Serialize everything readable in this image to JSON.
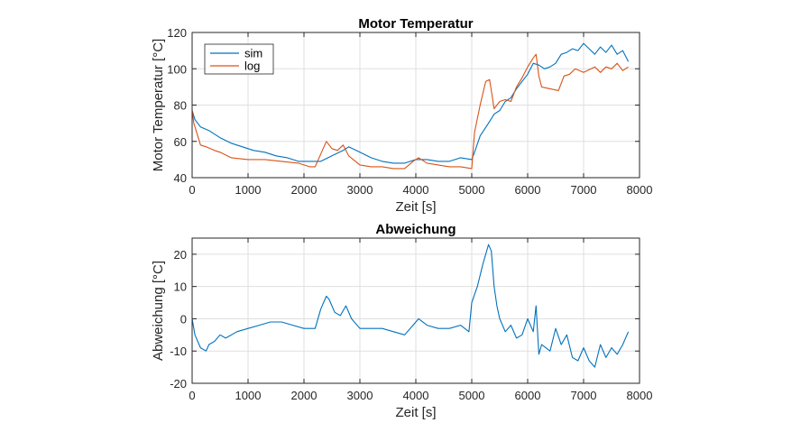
{
  "colors": {
    "sim": "#0072BD",
    "log": "#D95319",
    "grid": "#DFDFDF",
    "axis": "#262626"
  },
  "chart_data": [
    {
      "type": "line",
      "title": "Motor Temperatur",
      "xlabel": "Zeit [s]",
      "ylabel": "Motor Temperatur [°C]",
      "xlim": [
        0,
        8000
      ],
      "ylim": [
        40,
        120
      ],
      "xticks": [
        0,
        1000,
        2000,
        3000,
        4000,
        5000,
        6000,
        7000,
        8000
      ],
      "yticks": [
        40,
        60,
        80,
        100,
        120
      ],
      "xtick_labels": [
        "0",
        "1000",
        "2000",
        "3000",
        "4000",
        "5000",
        "6000",
        "7000",
        "8000"
      ],
      "ytick_labels": [
        "40",
        "60",
        "80",
        "100",
        "120"
      ],
      "grid": true,
      "legend": "top-left",
      "series": [
        {
          "name": "sim",
          "x": [
            0,
            50,
            150,
            300,
            500,
            700,
            900,
            1100,
            1300,
            1500,
            1700,
            1900,
            2100,
            2300,
            2500,
            2700,
            2800,
            3000,
            3200,
            3400,
            3600,
            3800,
            4000,
            4200,
            4400,
            4600,
            4800,
            5000,
            5050,
            5150,
            5300,
            5400,
            5500,
            5600,
            5700,
            5800,
            5900,
            6000,
            6100,
            6200,
            6300,
            6400,
            6500,
            6600,
            6700,
            6800,
            6900,
            7000,
            7100,
            7200,
            7300,
            7400,
            7500,
            7600,
            7700,
            7800
          ],
          "values": [
            77,
            72,
            68,
            66,
            62,
            59,
            57,
            55,
            54,
            52,
            51,
            49,
            49,
            49,
            52,
            55,
            57,
            54,
            51,
            49,
            48,
            48,
            50,
            50,
            49,
            49,
            51,
            50,
            54,
            63,
            70,
            75,
            77,
            82,
            84,
            89,
            93,
            97,
            103,
            102,
            100,
            101,
            103,
            108,
            109,
            111,
            110,
            114,
            111,
            108,
            112,
            109,
            113,
            108,
            110,
            104
          ]
        },
        {
          "name": "log",
          "x": [
            0,
            30,
            100,
            150,
            250,
            400,
            500,
            700,
            1000,
            1300,
            1600,
            1900,
            2100,
            2200,
            2300,
            2400,
            2500,
            2600,
            2700,
            2800,
            3000,
            3200,
            3400,
            3600,
            3800,
            3950,
            4050,
            4200,
            4400,
            4600,
            4800,
            5000,
            5050,
            5150,
            5250,
            5320,
            5400,
            5500,
            5600,
            5700,
            5800,
            5900,
            6000,
            6100,
            6150,
            6200,
            6250,
            6400,
            6550,
            6650,
            6750,
            6850,
            7000,
            7200,
            7300,
            7400,
            7500,
            7600,
            7700,
            7800
          ],
          "values": [
            77,
            70,
            63,
            58,
            57,
            55,
            54,
            51,
            50,
            50,
            49,
            48,
            46,
            46,
            53,
            60,
            56,
            55,
            58,
            52,
            47,
            46,
            46,
            45,
            45,
            49,
            51,
            48,
            47,
            46,
            46,
            45,
            65,
            80,
            93,
            94,
            78,
            82,
            83,
            82,
            90,
            95,
            101,
            106,
            108,
            96,
            90,
            89,
            88,
            96,
            97,
            100,
            98,
            101,
            98,
            101,
            100,
            103,
            99,
            101
          ]
        }
      ]
    },
    {
      "type": "line",
      "title": "Abweichung",
      "xlabel": "Zeit [s]",
      "ylabel": "Abweichung [°C]",
      "xlim": [
        0,
        8000
      ],
      "ylim": [
        -20,
        25
      ],
      "xticks": [
        0,
        1000,
        2000,
        3000,
        4000,
        5000,
        6000,
        7000,
        8000
      ],
      "yticks": [
        -20,
        -10,
        0,
        10,
        20
      ],
      "xtick_labels": [
        "0",
        "1000",
        "2000",
        "3000",
        "4000",
        "5000",
        "6000",
        "7000",
        "8000"
      ],
      "ytick_labels": [
        "-20",
        "-10",
        "0",
        "10",
        "20"
      ],
      "grid": true,
      "series": [
        {
          "name": "Abweichung",
          "x": [
            0,
            50,
            150,
            250,
            300,
            400,
            500,
            600,
            800,
            1000,
            1200,
            1400,
            1600,
            1800,
            2000,
            2200,
            2300,
            2400,
            2450,
            2550,
            2650,
            2750,
            2850,
            3000,
            3200,
            3400,
            3600,
            3800,
            3950,
            4050,
            4200,
            4400,
            4600,
            4800,
            4950,
            5000,
            5100,
            5200,
            5300,
            5350,
            5400,
            5450,
            5500,
            5600,
            5700,
            5800,
            5900,
            6000,
            6050,
            6100,
            6150,
            6200,
            6250,
            6400,
            6500,
            6600,
            6700,
            6800,
            6900,
            7000,
            7100,
            7200,
            7300,
            7400,
            7500,
            7600,
            7700,
            7800
          ],
          "values": [
            0,
            -5,
            -9,
            -10,
            -8,
            -7,
            -5,
            -6,
            -4,
            -3,
            -2,
            -1,
            -1,
            -2,
            -3,
            -3,
            3,
            7,
            6,
            2,
            1,
            4,
            0,
            -3,
            -3,
            -3,
            -4,
            -5,
            -2,
            0,
            -2,
            -3,
            -3,
            -2,
            -4,
            5,
            10,
            17,
            23,
            21,
            10,
            4,
            0,
            -4,
            -2,
            -6,
            -5,
            0,
            -2,
            -4,
            4,
            -11,
            -8,
            -10,
            -3,
            -8,
            -5,
            -12,
            -13,
            -9,
            -13,
            -15,
            -8,
            -12,
            -9,
            -11,
            -8,
            -4
          ]
        }
      ]
    }
  ]
}
